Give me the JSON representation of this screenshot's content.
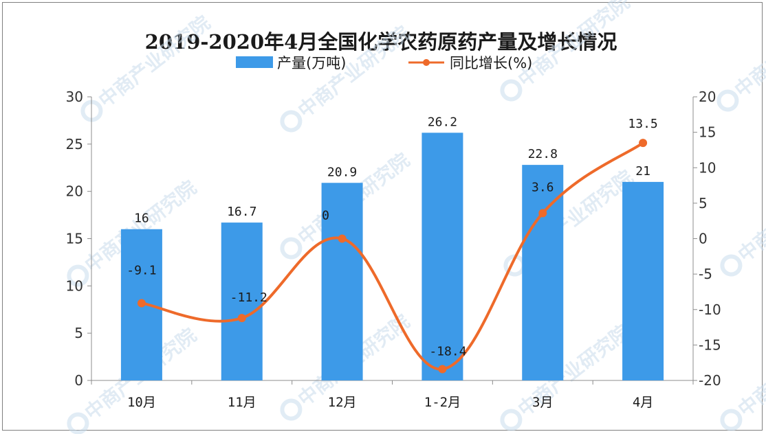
{
  "chart_data": {
    "type": "bar+line",
    "title": "2019-2020年4月全国化学农药原药产量及增长情况",
    "categories": [
      "10月",
      "11月",
      "12月",
      "1-2月",
      "3月",
      "4月"
    ],
    "series": [
      {
        "name": "产量(万吨)",
        "type": "bar",
        "axis": "left",
        "color": "#3d9ae8",
        "values": [
          16,
          16.7,
          20.9,
          26.2,
          22.8,
          21
        ],
        "labels": [
          "16",
          "16.7",
          "20.9",
          "26.2",
          "22.8",
          "21"
        ]
      },
      {
        "name": "同比增长(%)",
        "type": "line",
        "axis": "right",
        "color": "#ee6a2a",
        "smooth": true,
        "values": [
          -9.1,
          -11.2,
          0,
          -18.4,
          3.6,
          13.5
        ],
        "labels": [
          "-9.1",
          "-11.2",
          "0",
          "-18.4",
          "3.6",
          "13.5"
        ]
      }
    ],
    "y_left": {
      "lim": [
        0,
        30
      ],
      "ticks": [
        0,
        5,
        10,
        15,
        20,
        25,
        30
      ],
      "tick_labels": [
        "0",
        "5",
        "10",
        "15",
        "20",
        "25",
        "30"
      ]
    },
    "y_right": {
      "lim": [
        -20,
        20
      ],
      "ticks": [
        -20,
        -15,
        -10,
        -5,
        0,
        5,
        10,
        15,
        20
      ],
      "tick_labels": [
        "-20",
        "-15",
        "-10",
        "-5",
        "0",
        "5",
        "10",
        "15",
        "20"
      ]
    },
    "grid": false,
    "legend_position": "top-center"
  },
  "watermark": {
    "text": "中商产业研究院",
    "logo_icon": "zhongshang-logo-icon"
  }
}
